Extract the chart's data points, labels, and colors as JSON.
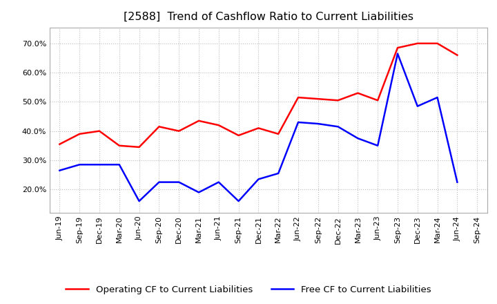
{
  "title": "[2588]  Trend of Cashflow Ratio to Current Liabilities",
  "xlabel": "",
  "ylabel": "",
  "ylim": [
    0.12,
    0.755
  ],
  "yticks": [
    0.2,
    0.3,
    0.4,
    0.5,
    0.6,
    0.7
  ],
  "x_labels": [
    "Jun-19",
    "Sep-19",
    "Dec-19",
    "Mar-20",
    "Jun-20",
    "Sep-20",
    "Dec-20",
    "Mar-21",
    "Jun-21",
    "Sep-21",
    "Dec-21",
    "Mar-22",
    "Jun-22",
    "Sep-22",
    "Dec-22",
    "Mar-23",
    "Jun-23",
    "Sep-23",
    "Dec-23",
    "Mar-24",
    "Jun-24",
    "Sep-24"
  ],
  "operating_cf": [
    0.355,
    0.39,
    0.4,
    0.35,
    0.345,
    0.415,
    0.4,
    0.435,
    0.42,
    0.385,
    0.41,
    0.39,
    0.515,
    0.51,
    0.505,
    0.53,
    0.505,
    0.685,
    0.7,
    0.7,
    0.66,
    null
  ],
  "free_cf": [
    0.265,
    0.285,
    0.285,
    0.285,
    0.16,
    0.225,
    0.225,
    0.19,
    0.225,
    0.16,
    0.235,
    0.255,
    0.43,
    0.425,
    0.415,
    0.375,
    0.35,
    0.665,
    0.485,
    0.515,
    0.225,
    null
  ],
  "operating_color": "#FF0000",
  "free_color": "#0000FF",
  "background_color": "#FFFFFF",
  "grid_color": "#BBBBBB",
  "title_fontsize": 11.5,
  "legend_fontsize": 9.5,
  "tick_fontsize": 8
}
